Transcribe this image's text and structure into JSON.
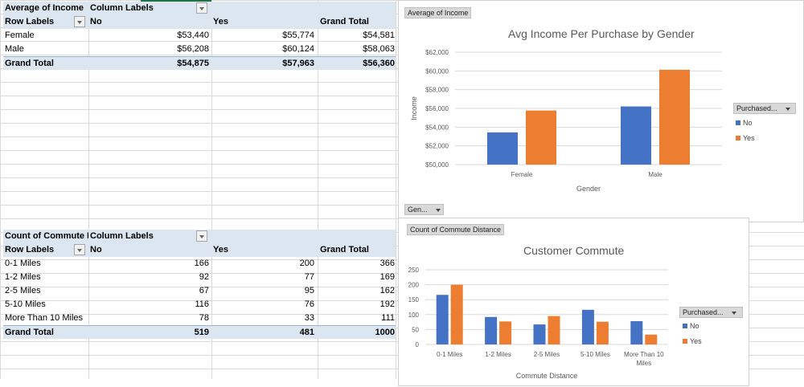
{
  "pivot_income": {
    "header": "Average of Income",
    "col_labels": "Column Labels",
    "row_labels": "Row Labels",
    "columns": [
      "No",
      "Yes",
      "Grand Total"
    ],
    "rows": [
      {
        "label": "Female",
        "values": [
          "$53,440",
          "$55,774",
          "$54,581"
        ]
      },
      {
        "label": "Male",
        "values": [
          "$56,208",
          "$60,124",
          "$58,063"
        ]
      }
    ],
    "total": {
      "label": "Grand Total",
      "values": [
        "$54,875",
        "$57,963",
        "$56,360"
      ]
    }
  },
  "pivot_commute": {
    "header": "Count of Commute Distance",
    "col_labels": "Column Labels",
    "row_labels": "Row Labels",
    "columns": [
      "No",
      "Yes",
      "Grand Total"
    ],
    "rows": [
      {
        "label": "0-1 Miles",
        "values": [
          "166",
          "200",
          "366"
        ]
      },
      {
        "label": "1-2 Miles",
        "values": [
          "92",
          "77",
          "169"
        ]
      },
      {
        "label": "2-5 Miles",
        "values": [
          "67",
          "95",
          "162"
        ]
      },
      {
        "label": "5-10 Miles",
        "values": [
          "116",
          "76",
          "192"
        ]
      },
      {
        "label": "More Than 10 Miles",
        "values": [
          "78",
          "33",
          "111"
        ]
      }
    ],
    "total": {
      "label": "Grand Total",
      "values": [
        "519",
        "481",
        "1000"
      ]
    }
  },
  "chart_data": [
    {
      "type": "bar",
      "field_button": "Average of Income",
      "axis_button": "Gen...",
      "title": "Avg Income Per Purchase by Gender",
      "xlabel": "Gender",
      "ylabel": "Income",
      "categories": [
        "Female",
        "Male"
      ],
      "ylim": [
        50000,
        62000
      ],
      "yticks": [
        "$50,000",
        "$52,000",
        "$54,000",
        "$56,000",
        "$58,000",
        "$60,000",
        "$62,000"
      ],
      "legend_title": "Purchased...",
      "legend": "right",
      "grid": true,
      "series": [
        {
          "name": "No",
          "color": "#4472c4",
          "values": [
            53440,
            56208
          ]
        },
        {
          "name": "Yes",
          "color": "#ed7d31",
          "values": [
            55774,
            60124
          ]
        }
      ]
    },
    {
      "type": "bar",
      "field_button": "Count of Commute Distance",
      "title": "Customer Commute",
      "xlabel": "Commute Distance",
      "ylabel": "",
      "categories": [
        "0-1 Miles",
        "1-2 Miles",
        "2-5 Miles",
        "5-10 Miles",
        "More Than 10 Miles"
      ],
      "ylim": [
        0,
        250
      ],
      "yticks": [
        "0",
        "50",
        "100",
        "150",
        "200",
        "250"
      ],
      "legend_title": "Purchased...",
      "legend": "right",
      "grid": true,
      "series": [
        {
          "name": "No",
          "color": "#4472c4",
          "values": [
            166,
            92,
            67,
            116,
            78
          ]
        },
        {
          "name": "Yes",
          "color": "#ed7d31",
          "values": [
            200,
            77,
            95,
            76,
            33
          ]
        }
      ]
    }
  ]
}
